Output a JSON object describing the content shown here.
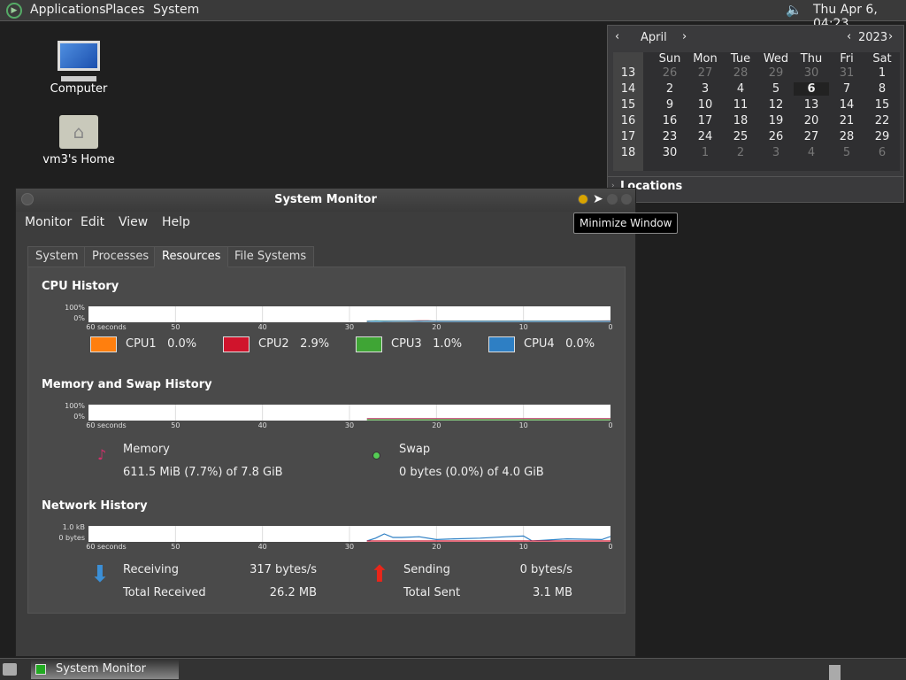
{
  "top_panel": {
    "menus": [
      "Applications",
      "Places",
      "System"
    ],
    "clock": "Thu Apr  6, 04:23"
  },
  "desktop": {
    "icons": [
      "Computer",
      "vm3's Home"
    ]
  },
  "calendar": {
    "month": "April",
    "year": "2023",
    "weekdays": [
      "Sun",
      "Mon",
      "Tue",
      "Wed",
      "Thu",
      "Fri",
      "Sat"
    ],
    "weeks": [
      {
        "num": "13",
        "days": [
          "26",
          "27",
          "28",
          "29",
          "30",
          "31",
          "1"
        ]
      },
      {
        "num": "14",
        "days": [
          "2",
          "3",
          "4",
          "5",
          "6",
          "7",
          "8"
        ]
      },
      {
        "num": "15",
        "days": [
          "9",
          "10",
          "11",
          "12",
          "13",
          "14",
          "15"
        ]
      },
      {
        "num": "16",
        "days": [
          "16",
          "17",
          "18",
          "19",
          "20",
          "21",
          "22"
        ]
      },
      {
        "num": "17",
        "days": [
          "23",
          "24",
          "25",
          "26",
          "27",
          "28",
          "29"
        ]
      },
      {
        "num": "18",
        "days": [
          "30",
          "1",
          "2",
          "3",
          "4",
          "5",
          "6"
        ]
      }
    ],
    "today": "6",
    "locations": "Locations"
  },
  "tooltip": "Minimize Window",
  "window": {
    "title": "System Monitor",
    "menus": [
      "Monitor",
      "Edit",
      "View",
      "Help"
    ],
    "tabs": [
      "System",
      "Processes",
      "Resources",
      "File Systems"
    ],
    "active_tab": "Resources"
  },
  "cpu": {
    "title": "CPU History",
    "legend": [
      {
        "name": "CPU1",
        "value": "0.0%",
        "color": "#ff7f0e"
      },
      {
        "name": "CPU2",
        "value": "2.9%",
        "color": "#d0142c"
      },
      {
        "name": "CPU3",
        "value": "1.0%",
        "color": "#3fa535"
      },
      {
        "name": "CPU4",
        "value": "0.0%",
        "color": "#2e7fc4"
      }
    ]
  },
  "memory": {
    "title": "Memory and Swap History",
    "mem_label": "Memory",
    "mem_value": "611.5 MiB (7.7%) of 7.8 GiB",
    "swap_label": "Swap",
    "swap_value": "0 bytes (0.0%) of 4.0 GiB"
  },
  "network": {
    "title": "Network History",
    "receiving_label": "Receiving",
    "receiving_value": "317 bytes/s",
    "total_received_label": "Total Received",
    "total_received_value": "26.2 MB",
    "sending_label": "Sending",
    "sending_value": "0 bytes/s",
    "total_sent_label": "Total Sent",
    "total_sent_value": "3.1 MB"
  },
  "chart_data": [
    {
      "type": "line",
      "title": "CPU History",
      "x_ticks": [
        "60 seconds",
        "50",
        "40",
        "30",
        "20",
        "10",
        "0"
      ],
      "y_ticks": [
        "100%",
        "0%"
      ],
      "ylim": [
        0,
        100
      ],
      "x": [
        28,
        27,
        26,
        24,
        22,
        21,
        20,
        15,
        10,
        5,
        0
      ],
      "series": [
        {
          "name": "CPU1",
          "color": "#ff7f0e",
          "values": [
            0,
            1,
            0,
            0,
            0,
            0,
            0,
            0,
            0,
            0,
            0
          ]
        },
        {
          "name": "CPU2",
          "color": "#d0142c",
          "values": [
            0,
            2,
            1,
            1,
            4,
            4,
            2,
            1,
            1,
            1,
            3
          ]
        },
        {
          "name": "CPU3",
          "color": "#3fa535",
          "values": [
            0,
            3,
            2,
            1,
            1,
            2,
            1,
            1,
            1,
            1,
            1
          ]
        },
        {
          "name": "CPU4",
          "color": "#2e7fc4",
          "values": [
            0,
            1,
            0,
            1,
            0,
            1,
            0,
            0,
            0,
            0,
            0
          ]
        }
      ]
    },
    {
      "type": "line",
      "title": "Memory and Swap History",
      "x_ticks": [
        "60 seconds",
        "50",
        "40",
        "30",
        "20",
        "10",
        "0"
      ],
      "y_ticks": [
        "100%",
        "0%"
      ],
      "ylim": [
        0,
        100
      ],
      "x": [
        28,
        0
      ],
      "series": [
        {
          "name": "Memory",
          "color": "#c4306a",
          "values": [
            7.7,
            7.7
          ]
        },
        {
          "name": "Swap",
          "color": "#3fa535",
          "values": [
            0,
            0
          ]
        }
      ]
    },
    {
      "type": "line",
      "title": "Network History",
      "x_ticks": [
        "60 seconds",
        "50",
        "40",
        "30",
        "20",
        "10",
        "0"
      ],
      "y_ticks": [
        "1.0 kB",
        "0 bytes"
      ],
      "ylim": [
        0,
        1000
      ],
      "x": [
        28,
        27,
        26,
        25,
        24,
        22,
        20,
        18,
        15,
        12,
        10,
        9,
        5,
        1,
        0
      ],
      "series": [
        {
          "name": "Receiving",
          "color": "#2e7fc4",
          "values": [
            0,
            200,
            500,
            250,
            250,
            300,
            100,
            150,
            200,
            300,
            350,
            0,
            150,
            100,
            317
          ]
        },
        {
          "name": "Sending",
          "color": "#d0142c",
          "values": [
            0,
            0,
            0,
            0,
            0,
            0,
            0,
            0,
            0,
            0,
            0,
            0,
            0,
            0,
            0
          ]
        }
      ]
    }
  ]
}
